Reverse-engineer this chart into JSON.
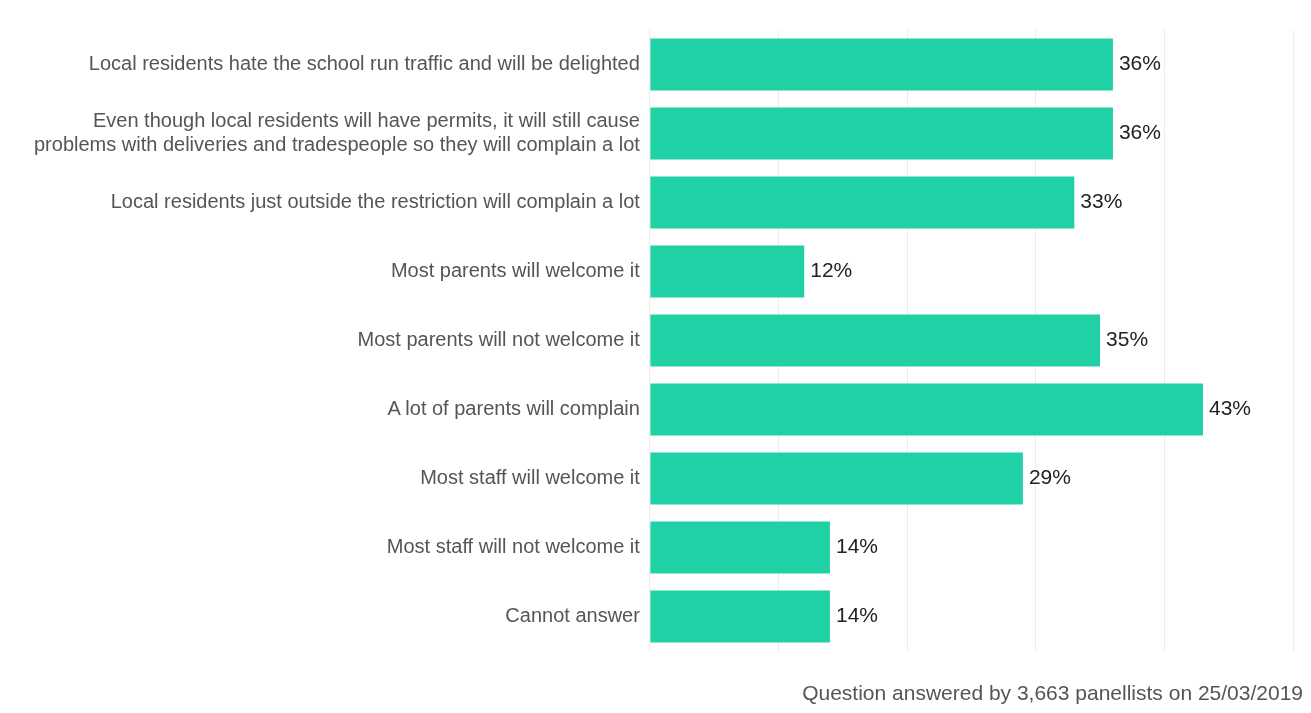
{
  "chart_data": {
    "type": "bar",
    "orientation": "horizontal",
    "categories": [
      "Local residents hate the school run traffic and will be delighted",
      "Even though local residents will have permits, it will still cause problems with deliveries and tradespeople so they will complain a lot",
      "Local residents just outside the restriction will complain a lot",
      "Most parents will welcome it",
      "Most parents will not welcome it",
      "A lot of parents will complain",
      "Most staff will welcome it",
      "Most staff will not welcome it",
      "Cannot answer"
    ],
    "values": [
      36,
      36,
      33,
      12,
      35,
      43,
      29,
      14,
      14
    ],
    "value_labels": [
      "36%",
      "36%",
      "33%",
      "12%",
      "35%",
      "43%",
      "29%",
      "14%",
      "14%"
    ],
    "color": "#1fd1a5",
    "xlim": [
      0,
      50
    ],
    "xticks": [
      {
        "value": 0,
        "label": null
      },
      {
        "value": 10,
        "label": null
      },
      {
        "value": 20,
        "label": null
      },
      {
        "value": 30,
        "label": null
      },
      {
        "value": 40,
        "label": null
      },
      {
        "value": 50,
        "label": null
      }
    ],
    "tick_labels": "y",
    "grid": "x",
    "legend": false,
    "annotations": [
      "Question answered by 3,663 panellists on 25/03/2019"
    ]
  }
}
